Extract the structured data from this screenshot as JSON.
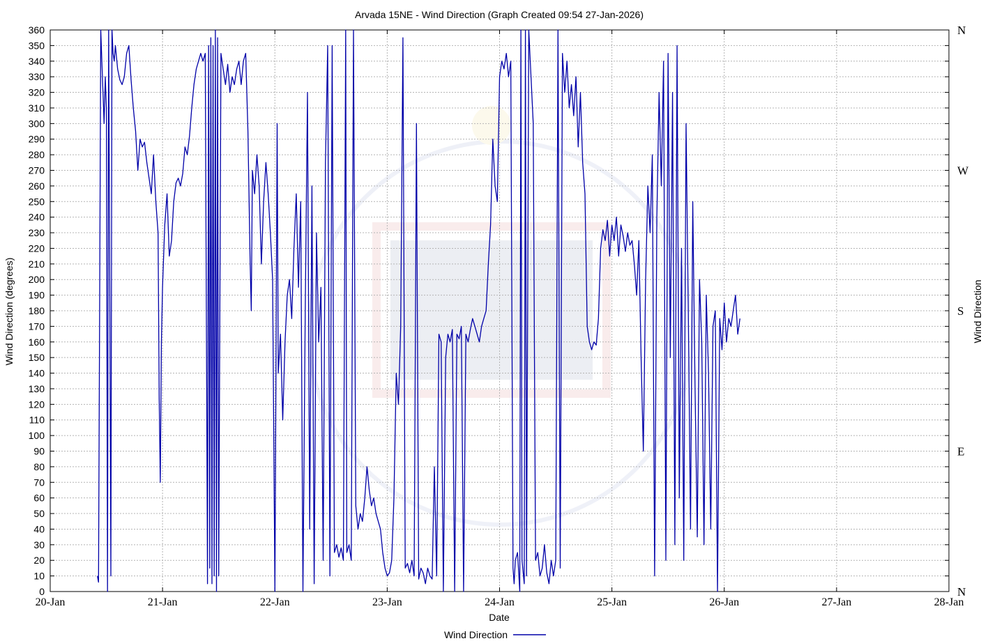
{
  "chart_data": {
    "type": "line",
    "title": "Arvada 15NE - Wind Direction (Graph Created 09:54 27-Jan-2026)",
    "xlabel": "Date",
    "ylabel": "Wind Direction (degrees)",
    "y2label": "Wind Direction",
    "ylim": [
      0,
      360
    ],
    "yticks": [
      0,
      10,
      20,
      30,
      40,
      50,
      60,
      70,
      80,
      90,
      100,
      110,
      120,
      130,
      140,
      150,
      160,
      170,
      180,
      190,
      200,
      210,
      220,
      230,
      240,
      250,
      260,
      270,
      280,
      290,
      300,
      310,
      320,
      330,
      340,
      350,
      360
    ],
    "y2ticks": [
      {
        "value": 0,
        "label": "N"
      },
      {
        "value": 90,
        "label": "E"
      },
      {
        "value": 180,
        "label": "S"
      },
      {
        "value": 270,
        "label": "W"
      },
      {
        "value": 360,
        "label": "N"
      }
    ],
    "xlim": [
      "20-Jan",
      "28-Jan"
    ],
    "xticks": [
      "20-Jan",
      "21-Jan",
      "22-Jan",
      "23-Jan",
      "24-Jan",
      "25-Jan",
      "26-Jan",
      "27-Jan",
      "28-Jan"
    ],
    "grid": true,
    "legend": "bottom-center",
    "series": [
      {
        "name": "Wind Direction",
        "color": "#0000a8",
        "points": [
          [
            20.42,
            10
          ],
          [
            20.43,
            6
          ],
          [
            20.44,
            180
          ],
          [
            20.45,
            360
          ],
          [
            20.46,
            340
          ],
          [
            20.47,
            320
          ],
          [
            20.48,
            300
          ],
          [
            20.49,
            330
          ],
          [
            20.5,
            310
          ],
          [
            20.51,
            0
          ],
          [
            20.52,
            360
          ],
          [
            20.53,
            200
          ],
          [
            20.54,
            10
          ],
          [
            20.55,
            360
          ],
          [
            20.56,
            345
          ],
          [
            20.57,
            340
          ],
          [
            20.58,
            350
          ],
          [
            20.6,
            335
          ],
          [
            20.62,
            328
          ],
          [
            20.64,
            325
          ],
          [
            20.66,
            330
          ],
          [
            20.68,
            345
          ],
          [
            20.7,
            350
          ],
          [
            20.72,
            328
          ],
          [
            20.74,
            310
          ],
          [
            20.76,
            295
          ],
          [
            20.78,
            270
          ],
          [
            20.8,
            290
          ],
          [
            20.82,
            285
          ],
          [
            20.84,
            288
          ],
          [
            20.86,
            275
          ],
          [
            20.88,
            265
          ],
          [
            20.9,
            255
          ],
          [
            20.92,
            280
          ],
          [
            20.94,
            250
          ],
          [
            20.96,
            230
          ],
          [
            20.97,
            125
          ],
          [
            20.98,
            70
          ],
          [
            20.99,
            160
          ],
          [
            21.0,
            195
          ],
          [
            21.02,
            235
          ],
          [
            21.04,
            255
          ],
          [
            21.06,
            215
          ],
          [
            21.08,
            225
          ],
          [
            21.1,
            250
          ],
          [
            21.12,
            262
          ],
          [
            21.14,
            265
          ],
          [
            21.16,
            260
          ],
          [
            21.18,
            268
          ],
          [
            21.2,
            285
          ],
          [
            21.22,
            280
          ],
          [
            21.24,
            292
          ],
          [
            21.26,
            310
          ],
          [
            21.28,
            325
          ],
          [
            21.3,
            335
          ],
          [
            21.32,
            340
          ],
          [
            21.34,
            345
          ],
          [
            21.36,
            340
          ],
          [
            21.38,
            345
          ],
          [
            21.4,
            5
          ],
          [
            21.41,
            350
          ],
          [
            21.42,
            15
          ],
          [
            21.43,
            355
          ],
          [
            21.44,
            5
          ],
          [
            21.45,
            350
          ],
          [
            21.46,
            10
          ],
          [
            21.47,
            360
          ],
          [
            21.48,
            0
          ],
          [
            21.49,
            355
          ],
          [
            21.5,
            10
          ],
          [
            21.52,
            345
          ],
          [
            21.54,
            335
          ],
          [
            21.56,
            325
          ],
          [
            21.58,
            338
          ],
          [
            21.6,
            320
          ],
          [
            21.62,
            330
          ],
          [
            21.64,
            325
          ],
          [
            21.66,
            335
          ],
          [
            21.68,
            340
          ],
          [
            21.7,
            325
          ],
          [
            21.72,
            340
          ],
          [
            21.74,
            345
          ],
          [
            21.76,
            295
          ],
          [
            21.78,
            210
          ],
          [
            21.79,
            180
          ],
          [
            21.8,
            270
          ],
          [
            21.82,
            255
          ],
          [
            21.84,
            280
          ],
          [
            21.86,
            260
          ],
          [
            21.88,
            210
          ],
          [
            21.9,
            250
          ],
          [
            21.92,
            275
          ],
          [
            21.94,
            255
          ],
          [
            21.96,
            230
          ],
          [
            21.98,
            200
          ],
          [
            22.0,
            0
          ],
          [
            22.02,
            300
          ],
          [
            22.03,
            140
          ],
          [
            22.05,
            165
          ],
          [
            22.07,
            110
          ],
          [
            22.09,
            160
          ],
          [
            22.11,
            190
          ],
          [
            22.13,
            200
          ],
          [
            22.15,
            175
          ],
          [
            22.17,
            220
          ],
          [
            22.19,
            255
          ],
          [
            22.21,
            195
          ],
          [
            22.23,
            250
          ],
          [
            22.25,
            0
          ],
          [
            22.27,
            180
          ],
          [
            22.29,
            320
          ],
          [
            22.31,
            40
          ],
          [
            22.33,
            260
          ],
          [
            22.35,
            5
          ],
          [
            22.37,
            230
          ],
          [
            22.39,
            160
          ],
          [
            22.41,
            195
          ],
          [
            22.43,
            20
          ],
          [
            22.45,
            275
          ],
          [
            22.47,
            350
          ],
          [
            22.49,
            10
          ],
          [
            22.51,
            350
          ],
          [
            22.53,
            25
          ],
          [
            22.55,
            30
          ],
          [
            22.57,
            22
          ],
          [
            22.59,
            28
          ],
          [
            22.61,
            20
          ],
          [
            22.63,
            360
          ],
          [
            22.64,
            25
          ],
          [
            22.66,
            30
          ],
          [
            22.68,
            20
          ],
          [
            22.7,
            360
          ],
          [
            22.72,
            55
          ],
          [
            22.74,
            40
          ],
          [
            22.76,
            50
          ],
          [
            22.78,
            45
          ],
          [
            22.8,
            60
          ],
          [
            22.82,
            80
          ],
          [
            22.84,
            65
          ],
          [
            22.86,
            55
          ],
          [
            22.88,
            60
          ],
          [
            22.9,
            50
          ],
          [
            22.92,
            45
          ],
          [
            22.94,
            40
          ],
          [
            22.96,
            25
          ],
          [
            22.98,
            15
          ],
          [
            23.0,
            10
          ],
          [
            23.02,
            12
          ],
          [
            23.04,
            20
          ],
          [
            23.06,
            60
          ],
          [
            23.08,
            140
          ],
          [
            23.1,
            120
          ],
          [
            23.12,
            170
          ],
          [
            23.14,
            355
          ],
          [
            23.16,
            15
          ],
          [
            23.18,
            18
          ],
          [
            23.2,
            12
          ],
          [
            23.22,
            20
          ],
          [
            23.24,
            10
          ],
          [
            23.26,
            300
          ],
          [
            23.28,
            8
          ],
          [
            23.3,
            15
          ],
          [
            23.32,
            12
          ],
          [
            23.34,
            5
          ],
          [
            23.36,
            15
          ],
          [
            23.38,
            10
          ],
          [
            23.4,
            8
          ],
          [
            23.42,
            80
          ],
          [
            23.44,
            10
          ],
          [
            23.46,
            165
          ],
          [
            23.48,
            160
          ],
          [
            23.5,
            0
          ],
          [
            23.52,
            150
          ],
          [
            23.54,
            165
          ],
          [
            23.56,
            160
          ],
          [
            23.58,
            168
          ],
          [
            23.6,
            0
          ],
          [
            23.62,
            165
          ],
          [
            23.64,
            162
          ],
          [
            23.66,
            170
          ],
          [
            23.68,
            0
          ],
          [
            23.7,
            165
          ],
          [
            23.72,
            160
          ],
          [
            23.74,
            168
          ],
          [
            23.76,
            175
          ],
          [
            23.78,
            170
          ],
          [
            23.8,
            165
          ],
          [
            23.82,
            160
          ],
          [
            23.84,
            170
          ],
          [
            23.86,
            175
          ],
          [
            23.88,
            180
          ],
          [
            23.9,
            210
          ],
          [
            23.92,
            235
          ],
          [
            23.94,
            290
          ],
          [
            23.96,
            260
          ],
          [
            23.98,
            250
          ],
          [
            24.0,
            330
          ],
          [
            24.02,
            340
          ],
          [
            24.04,
            335
          ],
          [
            24.06,
            345
          ],
          [
            24.08,
            330
          ],
          [
            24.1,
            340
          ],
          [
            24.12,
            15
          ],
          [
            24.13,
            5
          ],
          [
            24.14,
            20
          ],
          [
            24.16,
            25
          ],
          [
            24.18,
            0
          ],
          [
            24.19,
            360
          ],
          [
            24.2,
            20
          ],
          [
            24.22,
            5
          ],
          [
            24.23,
            360
          ],
          [
            24.24,
            10
          ],
          [
            24.26,
            360
          ],
          [
            24.28,
            330
          ],
          [
            24.3,
            300
          ],
          [
            24.32,
            20
          ],
          [
            24.34,
            25
          ],
          [
            24.36,
            10
          ],
          [
            24.38,
            15
          ],
          [
            24.4,
            30
          ],
          [
            24.42,
            12
          ],
          [
            24.44,
            5
          ],
          [
            24.46,
            20
          ],
          [
            24.48,
            10
          ],
          [
            24.5,
            20
          ],
          [
            24.52,
            360
          ],
          [
            24.54,
            15
          ],
          [
            24.56,
            345
          ],
          [
            24.58,
            320
          ],
          [
            24.6,
            340
          ],
          [
            24.62,
            310
          ],
          [
            24.64,
            325
          ],
          [
            24.66,
            305
          ],
          [
            24.68,
            330
          ],
          [
            24.7,
            285
          ],
          [
            24.72,
            320
          ],
          [
            24.74,
            275
          ],
          [
            24.76,
            255
          ],
          [
            24.78,
            170
          ],
          [
            24.8,
            160
          ],
          [
            24.82,
            155
          ],
          [
            24.84,
            160
          ],
          [
            24.86,
            158
          ],
          [
            24.88,
            175
          ],
          [
            24.9,
            220
          ],
          [
            24.92,
            232
          ],
          [
            24.94,
            225
          ],
          [
            24.96,
            238
          ],
          [
            24.98,
            215
          ],
          [
            25.0,
            235
          ],
          [
            25.02,
            225
          ],
          [
            25.04,
            240
          ],
          [
            25.06,
            215
          ],
          [
            25.08,
            235
          ],
          [
            25.1,
            228
          ],
          [
            25.12,
            218
          ],
          [
            25.14,
            230
          ],
          [
            25.16,
            222
          ],
          [
            25.18,
            225
          ],
          [
            25.2,
            210
          ],
          [
            25.22,
            190
          ],
          [
            25.24,
            225
          ],
          [
            25.26,
            150
          ],
          [
            25.28,
            90
          ],
          [
            25.3,
            200
          ],
          [
            25.32,
            260
          ],
          [
            25.34,
            230
          ],
          [
            25.36,
            280
          ],
          [
            25.38,
            10
          ],
          [
            25.4,
            240
          ],
          [
            25.42,
            320
          ],
          [
            25.44,
            260
          ],
          [
            25.46,
            340
          ],
          [
            25.48,
            20
          ],
          [
            25.5,
            345
          ],
          [
            25.52,
            150
          ],
          [
            25.54,
            320
          ],
          [
            25.56,
            30
          ],
          [
            25.58,
            350
          ],
          [
            25.6,
            60
          ],
          [
            25.62,
            220
          ],
          [
            25.64,
            20
          ],
          [
            25.66,
            300
          ],
          [
            25.68,
            180
          ],
          [
            25.7,
            40
          ],
          [
            25.72,
            250
          ],
          [
            25.74,
            130
          ],
          [
            25.76,
            35
          ],
          [
            25.78,
            200
          ],
          [
            25.8,
            160
          ],
          [
            25.82,
            30
          ],
          [
            25.84,
            190
          ],
          [
            25.86,
            140
          ],
          [
            25.88,
            40
          ],
          [
            25.9,
            170
          ],
          [
            25.92,
            180
          ],
          [
            25.94,
            0
          ],
          [
            25.96,
            175
          ],
          [
            25.98,
            155
          ],
          [
            26.0,
            185
          ],
          [
            26.02,
            160
          ],
          [
            26.04,
            175
          ],
          [
            26.06,
            170
          ],
          [
            26.08,
            180
          ],
          [
            26.1,
            190
          ],
          [
            26.12,
            165
          ],
          [
            26.14,
            175
          ]
        ]
      }
    ]
  }
}
